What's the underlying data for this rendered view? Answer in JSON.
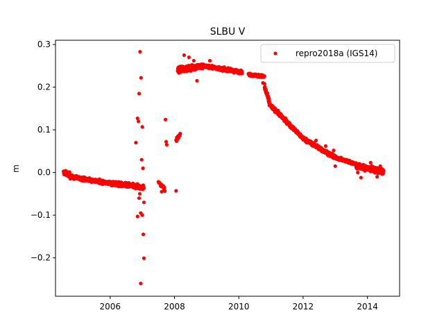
{
  "chart_data": {
    "type": "scatter",
    "title": "SLBU V",
    "xlabel": "",
    "ylabel": "m",
    "xlim": [
      2004.3,
      2015.0
    ],
    "ylim": [
      -0.29,
      0.31
    ],
    "x_ticks": [
      2006,
      2008,
      2010,
      2012,
      2014
    ],
    "y_ticks": [
      -0.2,
      -0.1,
      0.0,
      0.1,
      0.2,
      0.3
    ],
    "y_tick_labels": [
      "−0.2",
      "−0.1",
      "0.0",
      "0.1",
      "0.2",
      "0.3"
    ],
    "grid": false,
    "legend_position": "top-right",
    "colors": {
      "series": "#ff0000"
    },
    "series": [
      {
        "name": "repro2018a (IGS14)",
        "marker": "circle",
        "segments": [
          {
            "x_start": 2004.55,
            "x_end": 2004.75,
            "y_start": 0.0,
            "y_end": -0.005,
            "spread": 0.01,
            "count": 70
          },
          {
            "x_start": 2004.75,
            "x_end": 2006.0,
            "y_start": -0.01,
            "y_end": -0.025,
            "spread": 0.008,
            "count": 300
          },
          {
            "x_start": 2006.0,
            "x_end": 2007.05,
            "y_start": -0.025,
            "y_end": -0.035,
            "spread": 0.01,
            "count": 260
          },
          {
            "x_start": 2007.5,
            "x_end": 2007.7,
            "y_start": -0.02,
            "y_end": -0.04,
            "spread": 0.01,
            "count": 18
          },
          {
            "x_start": 2008.05,
            "x_end": 2008.18,
            "y_start": 0.075,
            "y_end": 0.09,
            "spread": 0.008,
            "count": 25
          },
          {
            "x_start": 2008.1,
            "x_end": 2008.9,
            "y_start": 0.24,
            "y_end": 0.25,
            "spread": 0.012,
            "count": 300
          },
          {
            "x_start": 2008.9,
            "x_end": 2010.1,
            "y_start": 0.25,
            "y_end": 0.235,
            "spread": 0.007,
            "count": 360
          },
          {
            "x_start": 2010.3,
            "x_end": 2010.8,
            "y_start": 0.23,
            "y_end": 0.225,
            "spread": 0.006,
            "count": 130
          },
          {
            "x_start": 2010.8,
            "x_end": 2010.95,
            "y_start": 0.2,
            "y_end": 0.165,
            "spread": 0.012,
            "count": 40
          },
          {
            "x_start": 2010.95,
            "x_end": 2012.0,
            "y_start": 0.16,
            "y_end": 0.08,
            "spread": 0.008,
            "count": 300
          },
          {
            "x_start": 2012.0,
            "x_end": 2013.0,
            "y_start": 0.08,
            "y_end": 0.035,
            "spread": 0.008,
            "count": 300
          },
          {
            "x_start": 2013.0,
            "x_end": 2013.65,
            "y_start": 0.035,
            "y_end": 0.02,
            "spread": 0.006,
            "count": 180
          },
          {
            "x_start": 2013.65,
            "x_end": 2014.5,
            "y_start": 0.015,
            "y_end": 0.002,
            "spread": 0.012,
            "count": 260
          }
        ],
        "points": [
          {
            "x": 2006.8,
            "y": 0.07
          },
          {
            "x": 2006.85,
            "y": 0.127
          },
          {
            "x": 2006.88,
            "y": 0.12
          },
          {
            "x": 2006.9,
            "y": 0.185
          },
          {
            "x": 2006.93,
            "y": 0.283
          },
          {
            "x": 2006.96,
            "y": 0.222
          },
          {
            "x": 2007.0,
            "y": 0.107
          },
          {
            "x": 2006.98,
            "y": 0.03
          },
          {
            "x": 2006.92,
            "y": -0.05
          },
          {
            "x": 2006.95,
            "y": -0.095
          },
          {
            "x": 2006.85,
            "y": -0.103
          },
          {
            "x": 2006.9,
            "y": -0.06
          },
          {
            "x": 2007.0,
            "y": -0.1
          },
          {
            "x": 2007.03,
            "y": -0.145
          },
          {
            "x": 2007.05,
            "y": -0.201
          },
          {
            "x": 2006.95,
            "y": -0.26
          },
          {
            "x": 2007.05,
            "y": -0.07
          },
          {
            "x": 2007.02,
            "y": 0.01
          },
          {
            "x": 2007.72,
            "y": 0.124
          },
          {
            "x": 2007.74,
            "y": 0.072
          },
          {
            "x": 2007.76,
            "y": 0.065
          },
          {
            "x": 2007.6,
            "y": -0.045
          },
          {
            "x": 2008.05,
            "y": -0.043
          },
          {
            "x": 2008.1,
            "y": 0.08
          },
          {
            "x": 2008.3,
            "y": 0.275
          },
          {
            "x": 2008.45,
            "y": 0.27
          },
          {
            "x": 2008.6,
            "y": 0.262
          },
          {
            "x": 2008.7,
            "y": 0.215
          },
          {
            "x": 2009.1,
            "y": 0.262
          },
          {
            "x": 2010.8,
            "y": 0.208
          },
          {
            "x": 2010.75,
            "y": 0.21
          },
          {
            "x": 2012.4,
            "y": 0.075
          },
          {
            "x": 2012.7,
            "y": 0.062
          },
          {
            "x": 2012.95,
            "y": 0.052
          },
          {
            "x": 2013.0,
            "y": 0.015
          },
          {
            "x": 2013.7,
            "y": 0.0
          },
          {
            "x": 2013.8,
            "y": -0.012
          },
          {
            "x": 2014.1,
            "y": 0.023
          },
          {
            "x": 2014.3,
            "y": -0.01
          },
          {
            "x": 2014.4,
            "y": 0.015
          }
        ]
      }
    ]
  }
}
